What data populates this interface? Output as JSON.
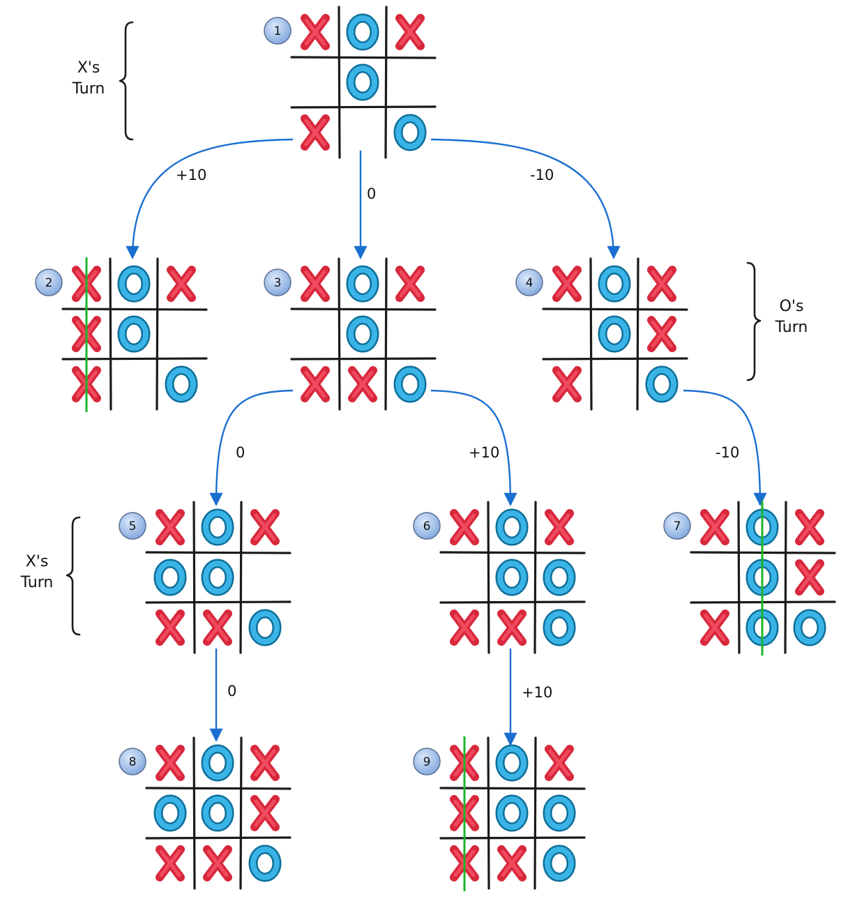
{
  "diagram": {
    "nodes": [
      {
        "id": "1",
        "label": "1",
        "board": [
          "X",
          "O",
          "X",
          "",
          "O",
          "",
          "X",
          "",
          "O"
        ],
        "win": null
      },
      {
        "id": "2",
        "label": "2",
        "board": [
          "X",
          "O",
          "X",
          "X",
          "O",
          "",
          "X",
          "",
          "O"
        ],
        "win": "col0"
      },
      {
        "id": "3",
        "label": "3",
        "board": [
          "X",
          "O",
          "X",
          "",
          "O",
          "",
          "X",
          "X",
          "O"
        ],
        "win": null
      },
      {
        "id": "4",
        "label": "4",
        "board": [
          "X",
          "O",
          "X",
          "",
          "O",
          "X",
          "X",
          "",
          "O"
        ],
        "win": null
      },
      {
        "id": "5",
        "label": "5",
        "board": [
          "X",
          "O",
          "X",
          "O",
          "O",
          "",
          "X",
          "X",
          "O"
        ],
        "win": null
      },
      {
        "id": "6",
        "label": "6",
        "board": [
          "X",
          "O",
          "X",
          "",
          "O",
          "O",
          "X",
          "X",
          "O"
        ],
        "win": null
      },
      {
        "id": "7",
        "label": "7",
        "board": [
          "X",
          "O",
          "X",
          "",
          "O",
          "X",
          "X",
          "O",
          "O"
        ],
        "win": "col1"
      },
      {
        "id": "8",
        "label": "8",
        "board": [
          "X",
          "O",
          "X",
          "O",
          "O",
          "X",
          "X",
          "X",
          "O"
        ],
        "win": null
      },
      {
        "id": "9",
        "label": "9",
        "board": [
          "X",
          "O",
          "X",
          "X",
          "O",
          "O",
          "X",
          "X",
          "O"
        ],
        "win": "col0"
      }
    ],
    "edges": [
      {
        "from": "1",
        "to": "2",
        "label": "+10"
      },
      {
        "from": "1",
        "to": "3",
        "label": "0"
      },
      {
        "from": "1",
        "to": "4",
        "label": "-10"
      },
      {
        "from": "3",
        "to": "5",
        "label": "0"
      },
      {
        "from": "3",
        "to": "6",
        "label": "+10"
      },
      {
        "from": "4",
        "to": "7",
        "label": "-10"
      },
      {
        "from": "5",
        "to": "8",
        "label": "0"
      },
      {
        "from": "6",
        "to": "9",
        "label": "+10"
      }
    ],
    "turn_labels": [
      {
        "line1": "X's",
        "line2": "Turn"
      },
      {
        "line1": "O's",
        "line2": "Turn"
      },
      {
        "line1": "X's",
        "line2": "Turn"
      }
    ],
    "colors": {
      "x_mark": "#d8283c",
      "o_mark": "#3ab4e6",
      "win_line": "#1bb52a",
      "edge": "#1a6fd0",
      "badge": "#8fb3e6"
    }
  }
}
